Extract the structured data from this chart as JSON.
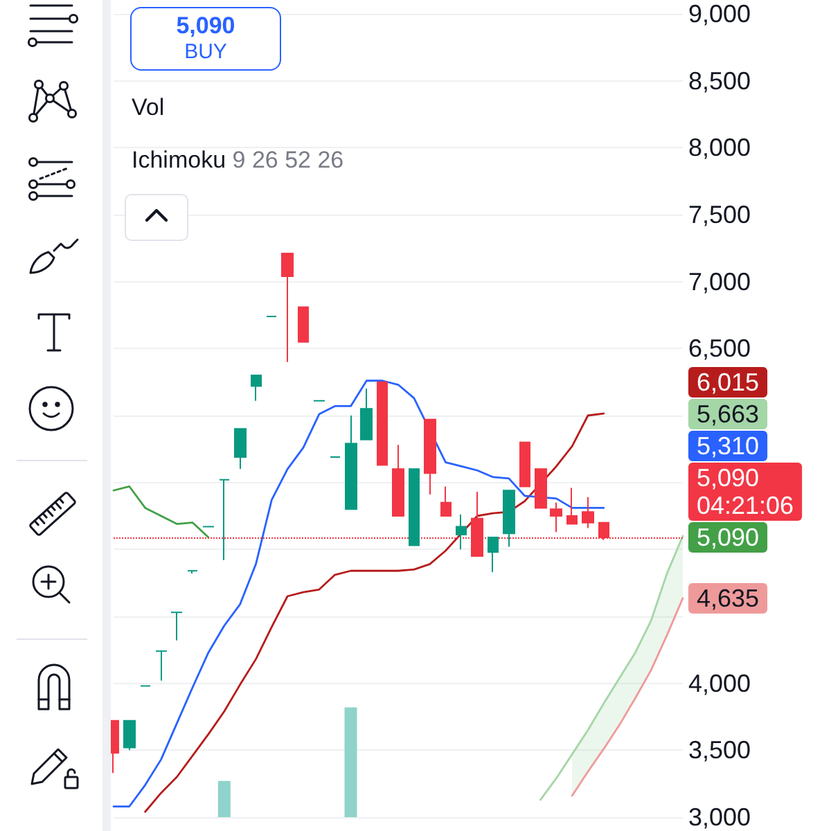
{
  "chart_data": {
    "type": "candlestick",
    "categories": [
      null,
      null,
      null,
      null,
      null,
      null,
      null,
      null,
      null,
      null,
      null,
      null,
      null,
      null,
      null,
      null,
      null,
      null,
      null,
      null,
      null,
      null,
      null,
      null,
      null,
      null,
      null,
      null,
      null,
      null,
      null,
      null,
      null,
      null,
      null,
      null,
      null
    ],
    "ohlc": [
      [
        3720,
        3720,
        3330,
        3480
      ],
      [
        3520,
        3720,
        3500,
        3720
      ],
      [
        3980,
        3980,
        3980,
        3980
      ],
      [
        4240,
        4240,
        4020,
        4240
      ],
      [
        4530,
        4530,
        4320,
        4530
      ],
      [
        4840,
        4840,
        4820,
        4840
      ],
      [
        5170,
        5170,
        5170,
        5170
      ],
      [
        5520,
        5520,
        4920,
        5520
      ],
      [
        5690,
        5900,
        5600,
        5900
      ],
      [
        6220,
        6300,
        6110,
        6300
      ],
      [
        6740,
        6740,
        6740,
        6740
      ],
      [
        7210,
        7210,
        6400,
        7040
      ],
      [
        6810,
        6810,
        6550,
        6550
      ],
      [
        6110,
        6110,
        6110,
        6110
      ],
      [
        5690,
        5690,
        5690,
        5690
      ],
      [
        5300,
        6000,
        5300,
        5790
      ],
      [
        5820,
        6200,
        5820,
        6050
      ],
      [
        6250,
        6250,
        5630,
        5630
      ],
      [
        5600,
        5780,
        5250,
        5250
      ],
      [
        5030,
        5600,
        5030,
        5600
      ],
      [
        5970,
        5970,
        5410,
        5570
      ],
      [
        5350,
        5470,
        5250,
        5250
      ],
      [
        5110,
        5260,
        5000,
        5170
      ],
      [
        5230,
        5430,
        4950,
        4950
      ],
      [
        4980,
        5090,
        4830,
        5090
      ],
      [
        5120,
        5440,
        5020,
        5440
      ],
      [
        5800,
        5800,
        5470,
        5470
      ],
      [
        5600,
        5600,
        5310,
        5310
      ],
      [
        5300,
        5350,
        5130,
        5250
      ],
      [
        5250,
        5460,
        5190,
        5190
      ],
      [
        5280,
        5390,
        5160,
        5200
      ],
      [
        5200,
        5200,
        5070,
        5090
      ],
      null,
      null,
      null,
      null,
      null
    ],
    "colors": [
      "#f23645",
      "#089981",
      "#089981",
      "#089981",
      "#089981",
      "#089981",
      "#089981",
      "#089981",
      "#089981",
      "#089981",
      "#089981",
      "#f23645",
      "#f23645",
      "#089981",
      "#089981",
      "#089981",
      "#089981",
      "#f23645",
      "#f23645",
      "#089981",
      "#f23645",
      "#f23645",
      "#089981",
      "#f23645",
      "#089981",
      "#089981",
      "#f23645",
      "#f23645",
      "#f23645",
      "#f23645",
      "#f23645",
      "#f23645",
      null,
      null,
      null,
      null,
      null
    ],
    "series": [
      {
        "type": "bar",
        "color": "#8fd3ca",
        "values": [
          null,
          null,
          null,
          null,
          null,
          null,
          null,
          3270,
          null,
          null,
          null,
          null,
          null,
          null,
          null,
          3820,
          null,
          null,
          null,
          null,
          null,
          null,
          null,
          null,
          null,
          null,
          null,
          null,
          null,
          null,
          null,
          null,
          null,
          null,
          null,
          null,
          null
        ]
      },
      {
        "type": "line",
        "color": "#a5d6a7",
        "values": [
          null,
          null,
          null,
          null,
          null,
          null,
          null,
          null,
          null,
          null,
          null,
          null,
          null,
          null,
          null,
          null,
          null,
          null,
          null,
          null,
          null,
          null,
          null,
          null,
          null,
          null,
          null,
          3130,
          3290,
          3470,
          3650,
          3850,
          4040,
          4230,
          4470,
          4820,
          5100
        ],
        "lower": [
          null,
          null,
          null,
          null,
          null,
          null,
          null,
          null,
          null,
          null,
          null,
          null,
          null,
          null,
          null,
          null,
          null,
          null,
          null,
          null,
          null,
          null,
          null,
          null,
          null,
          null,
          null,
          null,
          null,
          3160,
          3340,
          3510,
          3690,
          3890,
          4100,
          4360,
          4635
        ],
        "upper": [
          null,
          null,
          null,
          null,
          null,
          null,
          null,
          null,
          null,
          null,
          null,
          null,
          null,
          null,
          null,
          null,
          null,
          null,
          null,
          null,
          null,
          null,
          null,
          null,
          null,
          null,
          null,
          null,
          null,
          3470,
          3650,
          3850,
          4040,
          4230,
          4470,
          4820,
          5100
        ]
      },
      {
        "type": "line",
        "color": "#ef9a9a",
        "values": [
          null,
          null,
          null,
          null,
          null,
          null,
          null,
          null,
          null,
          null,
          null,
          null,
          null,
          null,
          null,
          null,
          null,
          null,
          null,
          null,
          null,
          null,
          null,
          null,
          null,
          null,
          null,
          null,
          null,
          3160,
          3340,
          3510,
          3690,
          3890,
          4100,
          4360,
          4635
        ]
      },
      {
        "type": "line",
        "color": "#43a047",
        "values": [
          5440,
          5470,
          5310,
          5250,
          5190,
          5200,
          5090,
          null,
          null,
          null,
          null,
          null,
          null,
          null,
          null,
          null,
          null,
          null,
          null,
          null,
          null,
          null,
          null,
          null,
          null,
          null,
          null,
          null,
          null,
          null,
          null,
          null,
          null,
          null,
          null,
          null,
          null
        ]
      },
      {
        "type": "line",
        "color": "#b71c1c",
        "values": [
          null,
          null,
          3040,
          3180,
          3300,
          3460,
          3620,
          3790,
          3990,
          4180,
          4420,
          4650,
          4680,
          4700,
          4810,
          4840,
          4840,
          4840,
          4840,
          4850,
          4890,
          4990,
          5120,
          5250,
          5270,
          5280,
          5360,
          null,
          5620,
          5770,
          6000,
          6015,
          null,
          null,
          null,
          null,
          null
        ]
      },
      {
        "type": "line",
        "color": "#2962ff",
        "values": [
          3080,
          3080,
          3240,
          3430,
          3700,
          3970,
          4230,
          4430,
          4590,
          4890,
          5370,
          5600,
          5760,
          6010,
          6070,
          6070,
          6260,
          6260,
          6230,
          6130,
          null,
          5650,
          5620,
          5590,
          5540,
          5530,
          5400,
          null,
          5380,
          5310,
          5310,
          5310,
          null,
          null,
          null,
          null,
          null
        ]
      }
    ],
    "annotations": [
      "5,090",
      "BUY",
      "Vol",
      "Ichimoku",
      "9 26 52 26",
      "04:21:06",
      "6,015",
      "5,663",
      "5,310",
      "5,090",
      "4,635"
    ],
    "ref_lines": [
      {
        "axis": "y",
        "value": 5090,
        "label": "5,090",
        "color": "#f23645",
        "line_style": "dotted"
      }
    ],
    "ylim": [
      3000,
      9000
    ],
    "yticks": [
      {
        "value": 3000,
        "label": "3,000"
      },
      {
        "value": 3500,
        "label": "3,500"
      },
      {
        "value": 4000,
        "label": "4,000"
      },
      {
        "value": 4500,
        "label": null
      },
      {
        "value": 5000,
        "label": null
      },
      {
        "value": 5500,
        "label": null
      },
      {
        "value": 6000,
        "label": null
      },
      {
        "value": 6500,
        "label": "6,500"
      },
      {
        "value": 7000,
        "label": "7,000"
      },
      {
        "value": 7500,
        "label": "7,500"
      },
      {
        "value": 8000,
        "label": "8,000"
      },
      {
        "value": 8500,
        "label": "8,500"
      },
      {
        "value": 9000,
        "label": "9,000"
      }
    ],
    "grid": "y",
    "tick_labels": "y"
  }
}
